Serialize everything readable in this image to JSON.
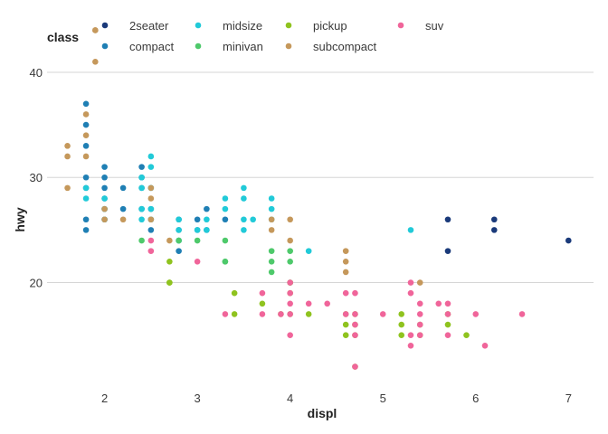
{
  "chart_data": {
    "type": "scatter",
    "xlabel": "displ",
    "ylabel": "hwy",
    "xlim": [
      1.38,
      7.27
    ],
    "ylim": [
      10.5,
      45.5
    ],
    "xticks": [
      2,
      3,
      4,
      5,
      6,
      7
    ],
    "yticks": [
      20,
      30,
      40
    ],
    "grid": "horizontal-major",
    "legend": {
      "title": "class",
      "placement": "top",
      "entries": [
        {
          "name": "2seater",
          "color": "#1a3a7a"
        },
        {
          "name": "compact",
          "color": "#1f7fb4"
        },
        {
          "name": "midsize",
          "color": "#21cad8"
        },
        {
          "name": "minivan",
          "color": "#4ec96b"
        },
        {
          "name": "pickup",
          "color": "#8fc31f"
        },
        {
          "name": "subcompact",
          "color": "#c5985b"
        },
        {
          "name": "suv",
          "color": "#f0659a"
        }
      ]
    },
    "series": [
      {
        "name": "2seater",
        "color": "#1a3a7a",
        "points": [
          [
            5.7,
            26
          ],
          [
            5.7,
            23
          ],
          [
            6.2,
            26
          ],
          [
            6.2,
            25
          ],
          [
            7.0,
            24
          ]
        ]
      },
      {
        "name": "compact",
        "color": "#1f7fb4",
        "points": [
          [
            1.8,
            37
          ],
          [
            1.8,
            35
          ],
          [
            1.8,
            33
          ],
          [
            1.8,
            30
          ],
          [
            1.8,
            29
          ],
          [
            1.8,
            26
          ],
          [
            1.8,
            25
          ],
          [
            2.0,
            31
          ],
          [
            2.0,
            30
          ],
          [
            2.0,
            29
          ],
          [
            2.0,
            28
          ],
          [
            2.0,
            27
          ],
          [
            2.0,
            26
          ],
          [
            2.2,
            29
          ],
          [
            2.2,
            27
          ],
          [
            2.4,
            31
          ],
          [
            2.4,
            30
          ],
          [
            2.4,
            29
          ],
          [
            2.4,
            27
          ],
          [
            2.5,
            29
          ],
          [
            2.5,
            27
          ],
          [
            2.5,
            26
          ],
          [
            2.5,
            25
          ],
          [
            2.8,
            26
          ],
          [
            2.8,
            25
          ],
          [
            2.8,
            24
          ],
          [
            2.8,
            23
          ],
          [
            3.0,
            26
          ],
          [
            3.0,
            25
          ],
          [
            3.1,
            27
          ],
          [
            3.1,
            25
          ],
          [
            3.3,
            26
          ]
        ]
      },
      {
        "name": "midsize",
        "color": "#21cad8",
        "points": [
          [
            1.8,
            29
          ],
          [
            1.8,
            28
          ],
          [
            2.0,
            28
          ],
          [
            2.0,
            27
          ],
          [
            2.0,
            26
          ],
          [
            2.4,
            30
          ],
          [
            2.4,
            29
          ],
          [
            2.4,
            27
          ],
          [
            2.4,
            26
          ],
          [
            2.5,
            32
          ],
          [
            2.5,
            31
          ],
          [
            2.5,
            29
          ],
          [
            2.5,
            27
          ],
          [
            2.5,
            26
          ],
          [
            2.8,
            26
          ],
          [
            2.8,
            25
          ],
          [
            2.8,
            24
          ],
          [
            3.0,
            25
          ],
          [
            3.1,
            26
          ],
          [
            3.1,
            25
          ],
          [
            3.3,
            28
          ],
          [
            3.3,
            27
          ],
          [
            3.5,
            29
          ],
          [
            3.5,
            28
          ],
          [
            3.5,
            26
          ],
          [
            3.5,
            25
          ],
          [
            3.6,
            26
          ],
          [
            3.8,
            28
          ],
          [
            3.8,
            27
          ],
          [
            3.8,
            26
          ],
          [
            4.2,
            23
          ],
          [
            5.3,
            25
          ]
        ]
      },
      {
        "name": "minivan",
        "color": "#4ec96b",
        "points": [
          [
            2.4,
            24
          ],
          [
            2.8,
            24
          ],
          [
            3.0,
            24
          ],
          [
            3.3,
            24
          ],
          [
            3.3,
            22
          ],
          [
            3.3,
            22
          ],
          [
            3.8,
            23
          ],
          [
            3.8,
            22
          ],
          [
            3.8,
            21
          ],
          [
            4.0,
            23
          ],
          [
            4.0,
            22
          ],
          [
            4.0,
            20
          ]
        ]
      },
      {
        "name": "pickup",
        "color": "#8fc31f",
        "points": [
          [
            2.7,
            22
          ],
          [
            2.7,
            20
          ],
          [
            2.7,
            20
          ],
          [
            3.4,
            19
          ],
          [
            3.4,
            17
          ],
          [
            3.7,
            18
          ],
          [
            3.9,
            17
          ],
          [
            4.0,
            20
          ],
          [
            4.0,
            19
          ],
          [
            4.0,
            17
          ],
          [
            4.2,
            17
          ],
          [
            4.6,
            17
          ],
          [
            4.6,
            16
          ],
          [
            4.6,
            15
          ],
          [
            4.7,
            17
          ],
          [
            4.7,
            16
          ],
          [
            4.7,
            15
          ],
          [
            4.7,
            12
          ],
          [
            5.2,
            17
          ],
          [
            5.2,
            16
          ],
          [
            5.2,
            15
          ],
          [
            5.4,
            16
          ],
          [
            5.4,
            15
          ],
          [
            5.7,
            17
          ],
          [
            5.7,
            16
          ],
          [
            5.9,
            15
          ]
        ]
      },
      {
        "name": "subcompact",
        "color": "#c5985b",
        "points": [
          [
            1.6,
            33
          ],
          [
            1.6,
            32
          ],
          [
            1.6,
            29
          ],
          [
            1.8,
            36
          ],
          [
            1.8,
            34
          ],
          [
            1.8,
            32
          ],
          [
            1.9,
            44
          ],
          [
            1.9,
            44
          ],
          [
            1.9,
            41
          ],
          [
            2.0,
            27
          ],
          [
            2.0,
            26
          ],
          [
            2.2,
            26
          ],
          [
            2.5,
            29
          ],
          [
            2.5,
            28
          ],
          [
            2.5,
            26
          ],
          [
            2.7,
            24
          ],
          [
            3.8,
            26
          ],
          [
            3.8,
            25
          ],
          [
            4.0,
            26
          ],
          [
            4.0,
            24
          ],
          [
            4.6,
            23
          ],
          [
            4.6,
            22
          ],
          [
            4.6,
            21
          ],
          [
            5.4,
            20
          ]
        ]
      },
      {
        "name": "suv",
        "color": "#f0659a",
        "points": [
          [
            2.5,
            24
          ],
          [
            2.5,
            23
          ],
          [
            3.0,
            22
          ],
          [
            3.3,
            17
          ],
          [
            3.7,
            19
          ],
          [
            3.7,
            17
          ],
          [
            3.9,
            17
          ],
          [
            4.0,
            20
          ],
          [
            4.0,
            19
          ],
          [
            4.0,
            18
          ],
          [
            4.0,
            17
          ],
          [
            4.0,
            15
          ],
          [
            4.2,
            18
          ],
          [
            4.4,
            18
          ],
          [
            4.6,
            19
          ],
          [
            4.6,
            17
          ],
          [
            4.7,
            19
          ],
          [
            4.7,
            17
          ],
          [
            4.7,
            16
          ],
          [
            4.7,
            15
          ],
          [
            4.7,
            12
          ],
          [
            5.0,
            17
          ],
          [
            5.3,
            20
          ],
          [
            5.3,
            19
          ],
          [
            5.3,
            15
          ],
          [
            5.3,
            14
          ],
          [
            5.4,
            18
          ],
          [
            5.4,
            17
          ],
          [
            5.4,
            16
          ],
          [
            5.4,
            15
          ],
          [
            5.6,
            18
          ],
          [
            5.7,
            18
          ],
          [
            5.7,
            17
          ],
          [
            5.7,
            15
          ],
          [
            6.0,
            17
          ],
          [
            6.1,
            14
          ],
          [
            6.5,
            17
          ]
        ]
      }
    ]
  }
}
